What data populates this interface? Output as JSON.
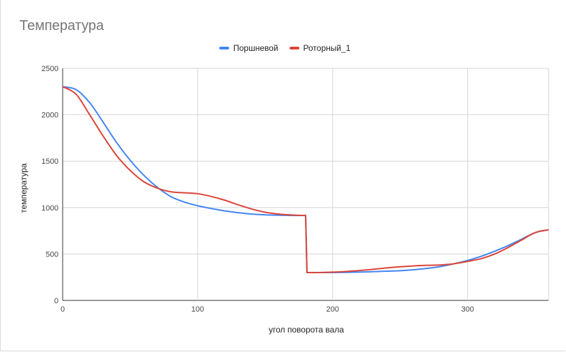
{
  "chart_data": {
    "type": "line",
    "title": "Температура",
    "xlabel": "угол поворота вала",
    "ylabel": "температура",
    "xlim": [
      0,
      360
    ],
    "ylim": [
      0,
      2500
    ],
    "xticks": [
      0,
      100,
      200,
      300
    ],
    "yticks": [
      0,
      500,
      1000,
      1500,
      2000,
      2500
    ],
    "grid": true,
    "legend_position": "top",
    "series": [
      {
        "name": "Поршневой",
        "color": "#4285f4",
        "points": [
          [
            0,
            2300
          ],
          [
            10,
            2270
          ],
          [
            20,
            2130
          ],
          [
            30,
            1920
          ],
          [
            40,
            1700
          ],
          [
            50,
            1510
          ],
          [
            60,
            1350
          ],
          [
            70,
            1220
          ],
          [
            80,
            1120
          ],
          [
            90,
            1060
          ],
          [
            100,
            1020
          ],
          [
            110,
            990
          ],
          [
            120,
            965
          ],
          [
            130,
            945
          ],
          [
            140,
            930
          ],
          [
            150,
            922
          ],
          [
            160,
            918
          ],
          [
            170,
            915
          ],
          [
            180,
            915
          ],
          [
            181,
            300
          ],
          [
            190,
            300
          ],
          [
            200,
            300
          ],
          [
            210,
            302
          ],
          [
            220,
            305
          ],
          [
            230,
            310
          ],
          [
            240,
            315
          ],
          [
            250,
            320
          ],
          [
            260,
            330
          ],
          [
            270,
            345
          ],
          [
            280,
            365
          ],
          [
            290,
            395
          ],
          [
            300,
            430
          ],
          [
            310,
            475
          ],
          [
            320,
            530
          ],
          [
            330,
            590
          ],
          [
            340,
            660
          ],
          [
            350,
            730
          ],
          [
            360,
            760
          ]
        ]
      },
      {
        "name": "Роторный_1",
        "color": "#db4437",
        "points": [
          [
            0,
            2300
          ],
          [
            10,
            2220
          ],
          [
            20,
            2000
          ],
          [
            30,
            1770
          ],
          [
            40,
            1560
          ],
          [
            50,
            1400
          ],
          [
            60,
            1280
          ],
          [
            70,
            1210
          ],
          [
            80,
            1170
          ],
          [
            90,
            1160
          ],
          [
            100,
            1150
          ],
          [
            110,
            1120
          ],
          [
            120,
            1080
          ],
          [
            130,
            1030
          ],
          [
            140,
            985
          ],
          [
            150,
            950
          ],
          [
            160,
            930
          ],
          [
            170,
            920
          ],
          [
            180,
            915
          ],
          [
            181,
            300
          ],
          [
            190,
            300
          ],
          [
            200,
            305
          ],
          [
            210,
            312
          ],
          [
            220,
            322
          ],
          [
            230,
            335
          ],
          [
            240,
            350
          ],
          [
            250,
            362
          ],
          [
            260,
            372
          ],
          [
            270,
            378
          ],
          [
            280,
            382
          ],
          [
            290,
            395
          ],
          [
            300,
            420
          ],
          [
            310,
            450
          ],
          [
            320,
            500
          ],
          [
            330,
            570
          ],
          [
            340,
            650
          ],
          [
            350,
            730
          ],
          [
            360,
            760
          ]
        ]
      }
    ]
  }
}
